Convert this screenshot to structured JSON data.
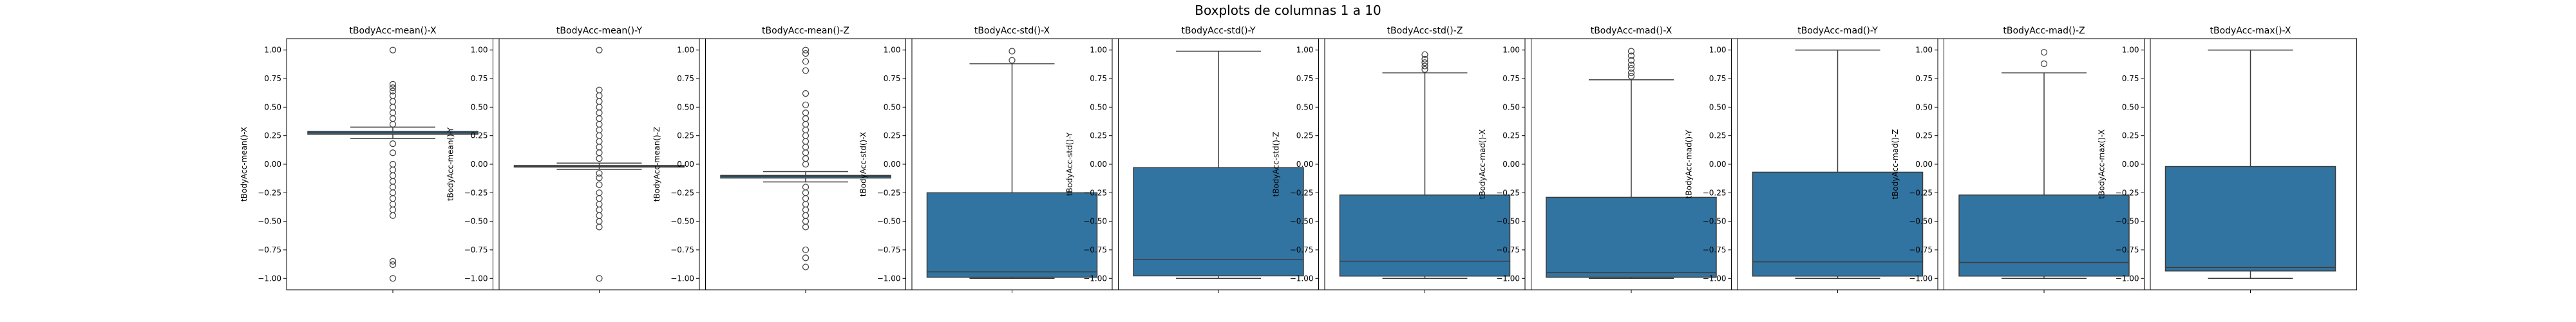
{
  "figure": {
    "suptitle": "Boxplots de columnas 1 a 10"
  },
  "colors": {
    "box_fill": "#3274a1",
    "line": "#3d3d3d",
    "axes": "#000000"
  },
  "chart_data": [
    {
      "type": "box",
      "title": "tBodyAcc-mean()-X",
      "ylabel": "tBodyAcc-mean()-X",
      "xlabel": "",
      "ylim": [
        -1.1,
        1.1
      ],
      "yticks": [
        -1.0,
        -0.75,
        -0.5,
        -0.25,
        0.0,
        0.25,
        0.5,
        0.75,
        1.0
      ],
      "q1": 0.263,
      "median": 0.277,
      "q3": 0.288,
      "whisker_low": 0.225,
      "whisker_high": 0.325,
      "outliers": [
        1.0,
        0.7,
        0.67,
        0.64,
        0.6,
        0.55,
        0.5,
        0.45,
        0.4,
        0.35,
        0.18,
        0.1,
        0.0,
        -0.05,
        -0.1,
        -0.15,
        -0.2,
        -0.25,
        -0.3,
        -0.35,
        -0.4,
        -0.45,
        -0.85,
        -0.88,
        -1.0
      ]
    },
    {
      "type": "box",
      "title": "tBodyAcc-mean()-Y",
      "ylabel": "tBodyAcc-mean()-Y",
      "xlabel": "",
      "ylim": [
        -1.1,
        1.1
      ],
      "yticks": [
        -1.0,
        -0.75,
        -0.5,
        -0.25,
        0.0,
        0.25,
        0.5,
        0.75,
        1.0
      ],
      "q1": -0.025,
      "median": -0.017,
      "q3": -0.011,
      "whisker_low": -0.045,
      "whisker_high": 0.01,
      "outliers": [
        1.0,
        0.65,
        0.6,
        0.55,
        0.5,
        0.45,
        0.4,
        0.35,
        0.3,
        0.25,
        0.2,
        0.15,
        0.1,
        0.05,
        -0.08,
        -0.12,
        -0.18,
        -0.25,
        -0.3,
        -0.35,
        -0.4,
        -0.45,
        -0.5,
        -0.55,
        -1.0
      ]
    },
    {
      "type": "box",
      "title": "tBodyAcc-mean()-Z",
      "ylabel": "tBodyAcc-mean()-Z",
      "xlabel": "",
      "ylim": [
        -1.1,
        1.1
      ],
      "yticks": [
        -1.0,
        -0.75,
        -0.5,
        -0.25,
        0.0,
        0.25,
        0.5,
        0.75,
        1.0
      ],
      "q1": -0.121,
      "median": -0.108,
      "q3": -0.098,
      "whisker_low": -0.155,
      "whisker_high": -0.065,
      "outliers": [
        1.0,
        0.97,
        0.9,
        0.82,
        0.62,
        0.52,
        0.45,
        0.4,
        0.35,
        0.3,
        0.25,
        0.2,
        0.15,
        0.1,
        0.05,
        0.0,
        -0.2,
        -0.25,
        -0.3,
        -0.35,
        -0.4,
        -0.45,
        -0.5,
        -0.55,
        -0.75,
        -0.82,
        -0.9
      ]
    },
    {
      "type": "box",
      "title": "tBodyAcc-std()-X",
      "ylabel": "tBodyAcc-std()-X",
      "xlabel": "",
      "ylim": [
        -1.1,
        1.1
      ],
      "yticks": [
        -1.0,
        -0.75,
        -0.5,
        -0.25,
        0.0,
        0.25,
        0.5,
        0.75,
        1.0
      ],
      "q1": -0.99,
      "median": -0.943,
      "q3": -0.25,
      "whisker_low": -1.0,
      "whisker_high": 0.88,
      "outliers": [
        0.91,
        0.99
      ]
    },
    {
      "type": "box",
      "title": "tBodyAcc-std()-Y",
      "ylabel": "tBodyAcc-std()-Y",
      "xlabel": "",
      "ylim": [
        -1.1,
        1.1
      ],
      "yticks": [
        -1.0,
        -0.75,
        -0.5,
        -0.25,
        0.0,
        0.25,
        0.5,
        0.75,
        1.0
      ],
      "q1": -0.978,
      "median": -0.835,
      "q3": -0.03,
      "whisker_low": -1.0,
      "whisker_high": 0.99,
      "outliers": []
    },
    {
      "type": "box",
      "title": "tBodyAcc-std()-Z",
      "ylabel": "tBodyAcc-std()-Z",
      "xlabel": "",
      "ylim": [
        -1.1,
        1.1
      ],
      "yticks": [
        -1.0,
        -0.75,
        -0.5,
        -0.25,
        0.0,
        0.25,
        0.5,
        0.75,
        1.0
      ],
      "q1": -0.98,
      "median": -0.85,
      "q3": -0.27,
      "whisker_low": -1.0,
      "whisker_high": 0.8,
      "outliers": [
        0.83,
        0.86,
        0.89,
        0.92,
        0.96
      ]
    },
    {
      "type": "box",
      "title": "tBodyAcc-mad()-X",
      "ylabel": "tBodyAcc-mad()-X",
      "xlabel": "",
      "ylim": [
        -1.1,
        1.1
      ],
      "yticks": [
        -1.0,
        -0.75,
        -0.5,
        -0.25,
        0.0,
        0.25,
        0.5,
        0.75,
        1.0
      ],
      "q1": -0.99,
      "median": -0.95,
      "q3": -0.29,
      "whisker_low": -1.0,
      "whisker_high": 0.74,
      "outliers": [
        0.77,
        0.8,
        0.84,
        0.87,
        0.91,
        0.95,
        0.99
      ]
    },
    {
      "type": "box",
      "title": "tBodyAcc-mad()-Y",
      "ylabel": "tBodyAcc-mad()-Y",
      "xlabel": "",
      "ylim": [
        -1.1,
        1.1
      ],
      "yticks": [
        -1.0,
        -0.75,
        -0.5,
        -0.25,
        0.0,
        0.25,
        0.5,
        0.75,
        1.0
      ],
      "q1": -0.98,
      "median": -0.855,
      "q3": -0.07,
      "whisker_low": -1.0,
      "whisker_high": 1.0,
      "outliers": []
    },
    {
      "type": "box",
      "title": "tBodyAcc-mad()-Z",
      "ylabel": "tBodyAcc-mad()-Z",
      "xlabel": "",
      "ylim": [
        -1.1,
        1.1
      ],
      "yticks": [
        -1.0,
        -0.75,
        -0.5,
        -0.25,
        0.0,
        0.25,
        0.5,
        0.75,
        1.0
      ],
      "q1": -0.98,
      "median": -0.86,
      "q3": -0.27,
      "whisker_low": -1.0,
      "whisker_high": 0.8,
      "outliers": [
        0.88,
        0.98
      ]
    },
    {
      "type": "box",
      "title": "tBodyAcc-max()-X",
      "ylabel": "tBodyAcc-max()-X",
      "xlabel": "",
      "ylim": [
        -1.1,
        1.1
      ],
      "yticks": [
        -1.0,
        -0.75,
        -0.5,
        -0.25,
        0.0,
        0.25,
        0.5,
        0.75,
        1.0
      ],
      "q1": -0.935,
      "median": -0.905,
      "q3": -0.02,
      "whisker_low": -1.0,
      "whisker_high": 1.0,
      "outliers": []
    }
  ]
}
